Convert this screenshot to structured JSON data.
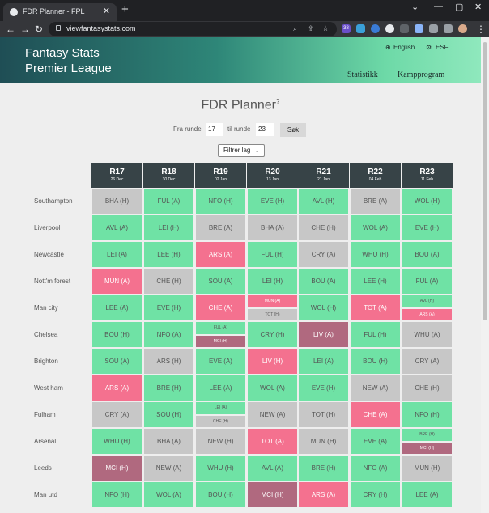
{
  "browser": {
    "tab_title": "FDR Planner - FPL",
    "tab_close": "✕",
    "new_tab": "+",
    "url": "viewfantasystats.com",
    "win_min": "⌄",
    "win_restore": "—",
    "win_max": "▢",
    "win_close": "✕",
    "back": "←",
    "forward": "→",
    "reload": "↻",
    "url_icons": [
      "⌕",
      "⇪",
      "☆"
    ],
    "ext_badge": "38"
  },
  "site": {
    "brand_line1": "Fantasy Stats",
    "brand_line2": "Premier League",
    "lang_en": "English",
    "lang_esf": "ESF",
    "nav_stats": "Statistikk",
    "nav_fixtures": "Kampprogram"
  },
  "planner": {
    "title": "FDR Planner",
    "help_icon": "?",
    "from_label": "Fra runde",
    "from_value": "17",
    "to_label": "til runde",
    "to_value": "23",
    "search_label": "Søk",
    "filter_label": "Filtrer lag",
    "filter_chevron": "⌄"
  },
  "columns": [
    {
      "round": "R17",
      "date": "26 Dec"
    },
    {
      "round": "R18",
      "date": "30 Dec"
    },
    {
      "round": "R19",
      "date": "02 Jan"
    },
    {
      "round": "R20",
      "date": "13 Jan"
    },
    {
      "round": "R21",
      "date": "21 Jan"
    },
    {
      "round": "R22",
      "date": "04 Feb"
    },
    {
      "round": "R23",
      "date": "11 Feb"
    }
  ],
  "rows": [
    {
      "team": "Southampton",
      "cells": [
        [
          {
            "text": "BHA (H)",
            "c": "gray"
          }
        ],
        [
          {
            "text": "FUL (A)",
            "c": "g"
          }
        ],
        [
          {
            "text": "NFO (H)",
            "c": "g"
          }
        ],
        [
          {
            "text": "EVE (H)",
            "c": "g"
          }
        ],
        [
          {
            "text": "AVL (H)",
            "c": "g"
          }
        ],
        [
          {
            "text": "BRE (A)",
            "c": "gray"
          }
        ],
        [
          {
            "text": "WOL (H)",
            "c": "g"
          }
        ]
      ]
    },
    {
      "team": "Liverpool",
      "cells": [
        [
          {
            "text": "AVL (A)",
            "c": "g"
          }
        ],
        [
          {
            "text": "LEI (H)",
            "c": "g"
          }
        ],
        [
          {
            "text": "BRE (A)",
            "c": "gray"
          }
        ],
        [
          {
            "text": "BHA (A)",
            "c": "gray"
          }
        ],
        [
          {
            "text": "CHE (H)",
            "c": "gray"
          }
        ],
        [
          {
            "text": "WOL (A)",
            "c": "g"
          }
        ],
        [
          {
            "text": "EVE (H)",
            "c": "g"
          }
        ]
      ]
    },
    {
      "team": "Newcastle",
      "cells": [
        [
          {
            "text": "LEI (A)",
            "c": "g"
          }
        ],
        [
          {
            "text": "LEE (H)",
            "c": "g"
          }
        ],
        [
          {
            "text": "ARS (A)",
            "c": "red"
          }
        ],
        [
          {
            "text": "FUL (H)",
            "c": "g"
          }
        ],
        [
          {
            "text": "CRY (A)",
            "c": "gray"
          }
        ],
        [
          {
            "text": "WHU (H)",
            "c": "g"
          }
        ],
        [
          {
            "text": "BOU (A)",
            "c": "g"
          }
        ]
      ]
    },
    {
      "team": "Nott'm forest",
      "cells": [
        [
          {
            "text": "MUN (A)",
            "c": "red"
          }
        ],
        [
          {
            "text": "CHE (H)",
            "c": "gray"
          }
        ],
        [
          {
            "text": "SOU (A)",
            "c": "g"
          }
        ],
        [
          {
            "text": "LEI (H)",
            "c": "g"
          }
        ],
        [
          {
            "text": "BOU (A)",
            "c": "g"
          }
        ],
        [
          {
            "text": "LEE (H)",
            "c": "g"
          }
        ],
        [
          {
            "text": "FUL (A)",
            "c": "g"
          }
        ]
      ]
    },
    {
      "team": "Man city",
      "cells": [
        [
          {
            "text": "LEE (A)",
            "c": "g"
          }
        ],
        [
          {
            "text": "EVE (H)",
            "c": "g"
          }
        ],
        [
          {
            "text": "CHE (A)",
            "c": "red"
          }
        ],
        [
          {
            "text": "MUN (A)",
            "c": "red"
          },
          {
            "text": "TOT (H)",
            "c": "gray"
          }
        ],
        [
          {
            "text": "WOL (H)",
            "c": "g"
          }
        ],
        [
          {
            "text": "TOT (A)",
            "c": "red"
          }
        ],
        [
          {
            "text": "AVL (H)",
            "c": "g"
          },
          {
            "text": "ARS (A)",
            "c": "red"
          }
        ]
      ]
    },
    {
      "team": "Chelsea",
      "cells": [
        [
          {
            "text": "BOU (H)",
            "c": "g"
          }
        ],
        [
          {
            "text": "NFO (A)",
            "c": "g"
          }
        ],
        [
          {
            "text": "FUL (A)",
            "c": "g"
          },
          {
            "text": "MCI (H)",
            "c": "dred"
          }
        ],
        [
          {
            "text": "CRY (H)",
            "c": "g"
          }
        ],
        [
          {
            "text": "LIV (A)",
            "c": "dred"
          }
        ],
        [
          {
            "text": "FUL (H)",
            "c": "g"
          }
        ],
        [
          {
            "text": "WHU (A)",
            "c": "gray"
          }
        ]
      ]
    },
    {
      "team": "Brighton",
      "cells": [
        [
          {
            "text": "SOU (A)",
            "c": "g"
          }
        ],
        [
          {
            "text": "ARS (H)",
            "c": "gray"
          }
        ],
        [
          {
            "text": "EVE (A)",
            "c": "g"
          }
        ],
        [
          {
            "text": "LIV (H)",
            "c": "red"
          }
        ],
        [
          {
            "text": "LEI (A)",
            "c": "g"
          }
        ],
        [
          {
            "text": "BOU (H)",
            "c": "g"
          }
        ],
        [
          {
            "text": "CRY (A)",
            "c": "gray"
          }
        ]
      ]
    },
    {
      "team": "West ham",
      "cells": [
        [
          {
            "text": "ARS (A)",
            "c": "red"
          }
        ],
        [
          {
            "text": "BRE (H)",
            "c": "g"
          }
        ],
        [
          {
            "text": "LEE (A)",
            "c": "g"
          }
        ],
        [
          {
            "text": "WOL (A)",
            "c": "g"
          }
        ],
        [
          {
            "text": "EVE (H)",
            "c": "g"
          }
        ],
        [
          {
            "text": "NEW (A)",
            "c": "gray"
          }
        ],
        [
          {
            "text": "CHE (H)",
            "c": "gray"
          }
        ]
      ]
    },
    {
      "team": "Fulham",
      "cells": [
        [
          {
            "text": "CRY (A)",
            "c": "gray"
          }
        ],
        [
          {
            "text": "SOU (H)",
            "c": "g"
          }
        ],
        [
          {
            "text": "LEI (A)",
            "c": "g"
          },
          {
            "text": "CHE (H)",
            "c": "gray"
          }
        ],
        [
          {
            "text": "NEW (A)",
            "c": "gray"
          }
        ],
        [
          {
            "text": "TOT (H)",
            "c": "gray"
          }
        ],
        [
          {
            "text": "CHE (A)",
            "c": "red"
          }
        ],
        [
          {
            "text": "NFO (H)",
            "c": "g"
          }
        ]
      ]
    },
    {
      "team": "Arsenal",
      "cells": [
        [
          {
            "text": "WHU (H)",
            "c": "g"
          }
        ],
        [
          {
            "text": "BHA (A)",
            "c": "gray"
          }
        ],
        [
          {
            "text": "NEW (H)",
            "c": "gray"
          }
        ],
        [
          {
            "text": "TOT (A)",
            "c": "red"
          }
        ],
        [
          {
            "text": "MUN (H)",
            "c": "gray"
          }
        ],
        [
          {
            "text": "EVE (A)",
            "c": "g"
          }
        ],
        [
          {
            "text": "BRE (H)",
            "c": "g"
          },
          {
            "text": "MCI (H)",
            "c": "dred"
          }
        ]
      ]
    },
    {
      "team": "Leeds",
      "cells": [
        [
          {
            "text": "MCI (H)",
            "c": "dred"
          }
        ],
        [
          {
            "text": "NEW (A)",
            "c": "gray"
          }
        ],
        [
          {
            "text": "WHU (H)",
            "c": "g"
          }
        ],
        [
          {
            "text": "AVL (A)",
            "c": "g"
          }
        ],
        [
          {
            "text": "BRE (H)",
            "c": "g"
          }
        ],
        [
          {
            "text": "NFO (A)",
            "c": "g"
          }
        ],
        [
          {
            "text": "MUN (H)",
            "c": "gray"
          }
        ]
      ]
    },
    {
      "team": "Man utd",
      "cells": [
        [
          {
            "text": "NFO (H)",
            "c": "g"
          }
        ],
        [
          {
            "text": "WOL (A)",
            "c": "g"
          }
        ],
        [
          {
            "text": "BOU (H)",
            "c": "g"
          }
        ],
        [
          {
            "text": "MCI (H)",
            "c": "dred"
          }
        ],
        [
          {
            "text": "ARS (A)",
            "c": "red"
          }
        ],
        [
          {
            "text": "CRY (H)",
            "c": "g"
          }
        ],
        [
          {
            "text": "LEE (A)",
            "c": "g"
          }
        ]
      ]
    }
  ],
  "colors": {
    "easy": "#6fe2a5",
    "medium": "#c7c7c7",
    "hard": "#f4718f",
    "very_hard": "#b0697f",
    "header": "#374347"
  }
}
